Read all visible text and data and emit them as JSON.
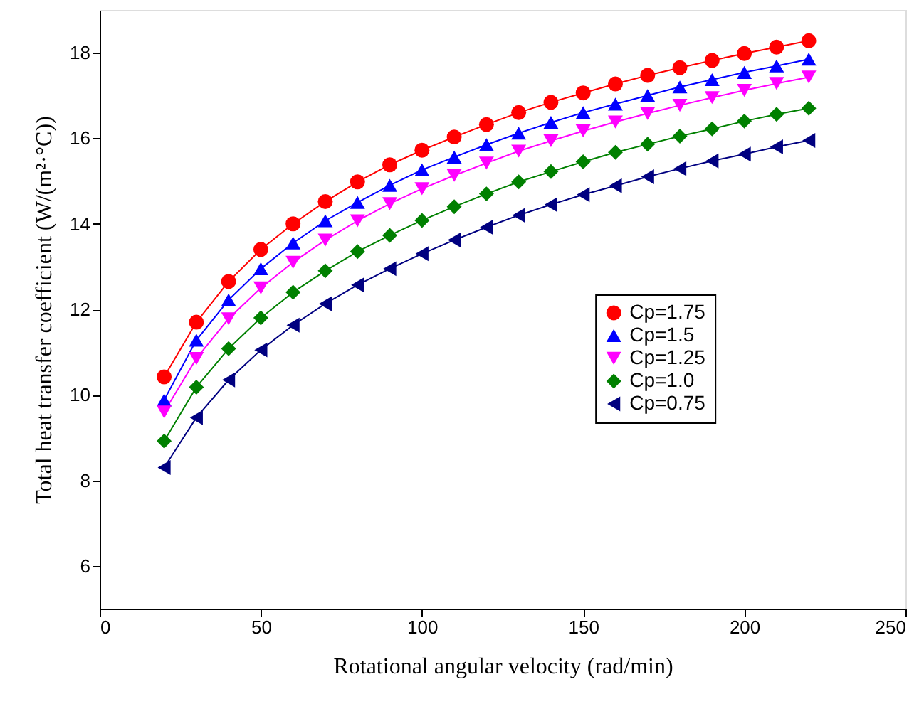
{
  "chart_data": {
    "type": "line",
    "xlabel": "Rotational angular velocity (rad/min)",
    "ylabel": "Total heat transfer coefficient (W/(m²·°C))",
    "x": [
      20,
      30,
      40,
      50,
      60,
      70,
      80,
      90,
      100,
      110,
      120,
      130,
      140,
      150,
      160,
      170,
      180,
      190,
      200,
      210,
      220
    ],
    "xlim": [
      0,
      250
    ],
    "xticks": [
      0,
      50,
      100,
      150,
      200,
      250
    ],
    "ylim": [
      5,
      19
    ],
    "yticks": [
      6,
      8,
      10,
      12,
      14,
      16,
      18
    ],
    "grid": false,
    "legend": "right",
    "line_style": "solid",
    "series": [
      {
        "name": "Cp=1.75",
        "color": "#ff0000",
        "marker": "circle",
        "values": [
          10.42,
          11.7,
          12.65,
          13.4,
          14.0,
          14.52,
          14.98,
          15.38,
          15.72,
          16.03,
          16.32,
          16.6,
          16.84,
          17.06,
          17.27,
          17.47,
          17.65,
          17.82,
          17.98,
          18.13,
          18.28
        ]
      },
      {
        "name": "Cp=1.5",
        "color": "#0000ff",
        "marker": "triangle",
        "values": [
          9.88,
          11.28,
          12.22,
          12.95,
          13.55,
          14.07,
          14.5,
          14.9,
          15.26,
          15.56,
          15.85,
          16.12,
          16.37,
          16.6,
          16.8,
          17.0,
          17.2,
          17.37,
          17.54,
          17.69,
          17.85
        ]
      },
      {
        "name": "Cp=1.25",
        "color": "#ff00ff",
        "marker": "triangle-down",
        "values": [
          9.6,
          10.85,
          11.78,
          12.5,
          13.1,
          13.62,
          14.07,
          14.47,
          14.82,
          15.13,
          15.42,
          15.7,
          15.94,
          16.17,
          16.38,
          16.58,
          16.77,
          16.95,
          17.12,
          17.28,
          17.43
        ]
      },
      {
        "name": "Cp=1.0",
        "color": "#008000",
        "marker": "diamond",
        "values": [
          8.92,
          10.18,
          11.08,
          11.8,
          12.4,
          12.9,
          13.35,
          13.73,
          14.08,
          14.4,
          14.7,
          14.98,
          15.22,
          15.45,
          15.67,
          15.86,
          16.05,
          16.22,
          16.4,
          16.56,
          16.7
        ]
      },
      {
        "name": "Cp=0.75",
        "color": "#000080",
        "marker": "triangle-left",
        "values": [
          8.3,
          9.47,
          10.35,
          11.05,
          11.63,
          12.13,
          12.57,
          12.95,
          13.3,
          13.62,
          13.92,
          14.2,
          14.45,
          14.68,
          14.89,
          15.1,
          15.29,
          15.47,
          15.63,
          15.8,
          15.95
        ]
      }
    ]
  }
}
